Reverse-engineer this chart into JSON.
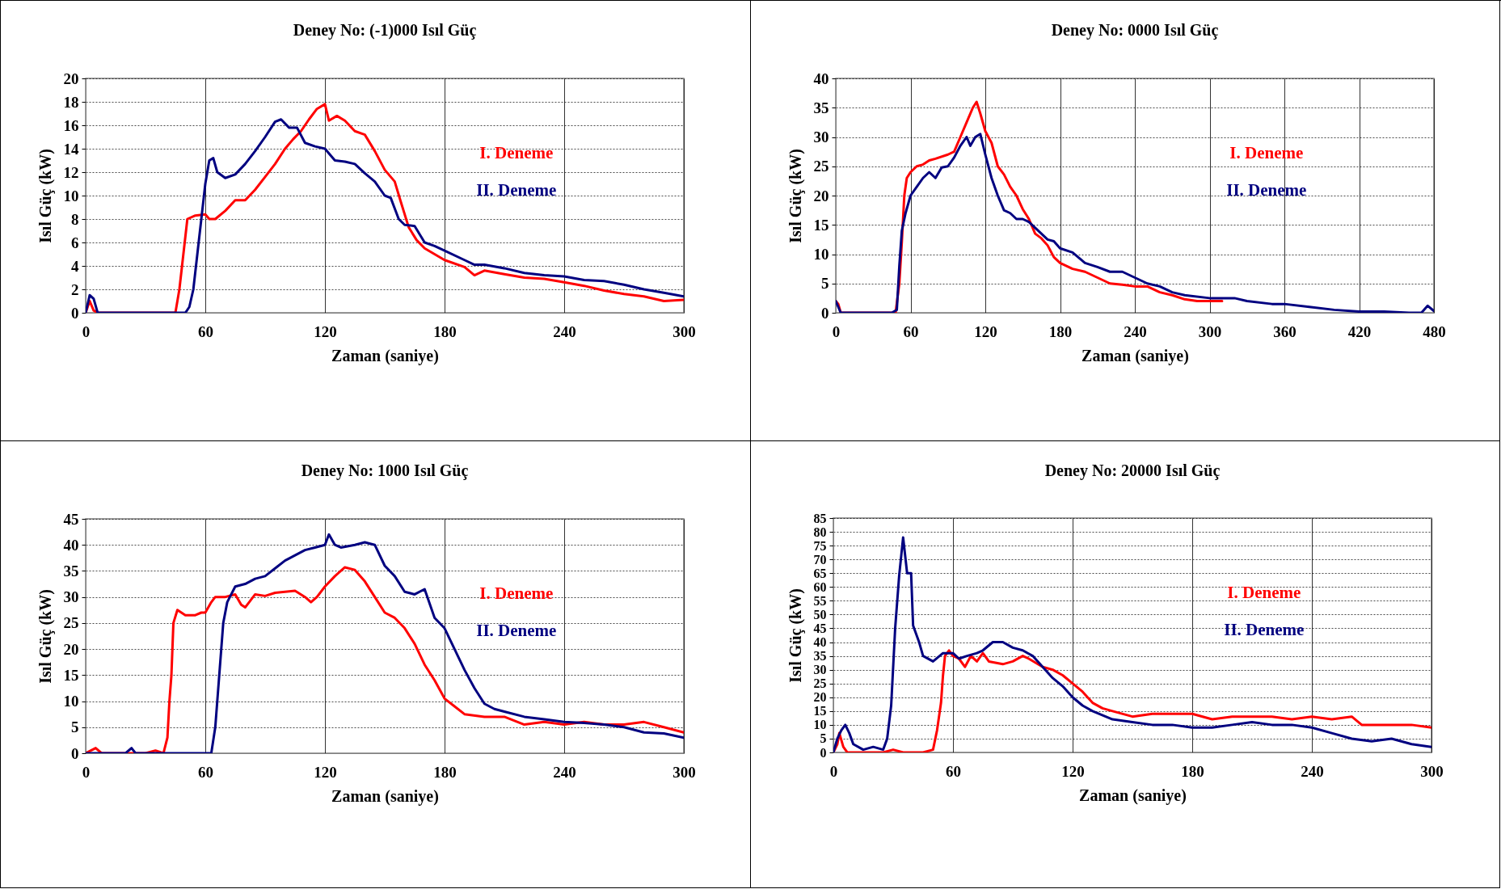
{
  "chart_data": [
    {
      "type": "line",
      "title": "Deney No: (-1)000 Isıl Güç",
      "xlabel": "Zaman (saniye)",
      "ylabel": "Isıl Güç (kW)",
      "xlim": [
        0,
        300
      ],
      "xticks": [
        0,
        60,
        120,
        180,
        240,
        300
      ],
      "ylim": [
        0,
        20
      ],
      "yticks": [
        0,
        2,
        4,
        6,
        8,
        10,
        12,
        14,
        16,
        18,
        20
      ],
      "grid": true,
      "line_style": "solid",
      "series": [
        {
          "name": "I. Deneme",
          "color": "#ff0000",
          "x": [
            0,
            2,
            4,
            6,
            30,
            45,
            47,
            49,
            51,
            55,
            60,
            62,
            65,
            70,
            75,
            80,
            85,
            90,
            95,
            100,
            104,
            108,
            112,
            116,
            120,
            122,
            126,
            130,
            135,
            140,
            145,
            150,
            155,
            158,
            162,
            166,
            170,
            175,
            180,
            190,
            195,
            200,
            210,
            220,
            230,
            240,
            250,
            260,
            270,
            280,
            290,
            300
          ],
          "values": [
            0,
            1,
            0.2,
            0,
            0,
            0,
            2,
            5,
            8,
            8.3,
            8.4,
            8,
            8,
            8.7,
            9.6,
            9.6,
            10.5,
            11.6,
            12.7,
            14,
            14.8,
            15.5,
            16.5,
            17.4,
            17.8,
            16.4,
            16.8,
            16.4,
            15.5,
            15.2,
            13.8,
            12.2,
            11.2,
            9.5,
            7.3,
            6.2,
            5.5,
            5,
            4.5,
            3.9,
            3.2,
            3.6,
            3.3,
            3,
            2.9,
            2.6,
            2.3,
            1.9,
            1.6,
            1.4,
            1,
            1.1
          ]
        },
        {
          "name": "II. Deneme",
          "color": "#000080",
          "x": [
            0,
            2,
            4,
            6,
            50,
            52,
            54,
            56,
            58,
            60,
            62,
            64,
            66,
            70,
            75,
            80,
            85,
            90,
            95,
            98,
            102,
            106,
            110,
            115,
            120,
            125,
            130,
            135,
            140,
            145,
            150,
            153,
            157,
            160,
            165,
            170,
            175,
            180,
            190,
            195,
            200,
            210,
            220,
            230,
            240,
            250,
            260,
            270,
            280,
            290,
            300
          ],
          "values": [
            0,
            1.5,
            1.2,
            0,
            0,
            0.5,
            2,
            5,
            8,
            11,
            13,
            13.2,
            12,
            11.5,
            11.8,
            12.7,
            13.8,
            15,
            16.3,
            16.5,
            15.8,
            15.8,
            14.5,
            14.2,
            14,
            13,
            12.9,
            12.7,
            11.9,
            11.2,
            10,
            9.8,
            8,
            7.5,
            7.4,
            6,
            5.7,
            5.3,
            4.5,
            4.1,
            4.1,
            3.8,
            3.4,
            3.2,
            3.1,
            2.8,
            2.7,
            2.4,
            2,
            1.7,
            1.4
          ]
        }
      ]
    },
    {
      "type": "line",
      "title": "Deney No: 0000 Isıl Güç",
      "xlabel": "Zaman (saniye)",
      "ylabel": "Isıl Güç (kW)",
      "xlim": [
        0,
        480
      ],
      "xticks": [
        0,
        60,
        120,
        180,
        240,
        300,
        360,
        420,
        480
      ],
      "ylim": [
        0,
        40
      ],
      "yticks": [
        0,
        5,
        10,
        15,
        20,
        25,
        30,
        35,
        40
      ],
      "grid": true,
      "line_style": "solid",
      "series": [
        {
          "name": "I. Deneme",
          "color": "#ff0000",
          "x": [
            0,
            2,
            4,
            48,
            51,
            53,
            55,
            57,
            60,
            65,
            70,
            75,
            80,
            90,
            95,
            100,
            105,
            110,
            113,
            116,
            120,
            125,
            130,
            135,
            140,
            145,
            150,
            155,
            160,
            165,
            170,
            175,
            180,
            190,
            200,
            210,
            220,
            230,
            240,
            250,
            260,
            270,
            280,
            290,
            300,
            310
          ],
          "values": [
            2,
            1.5,
            0,
            0,
            5,
            12,
            20,
            23,
            24,
            25,
            25.3,
            26,
            26.3,
            27,
            27.5,
            30,
            32.5,
            35,
            36,
            34,
            31,
            29,
            25,
            23.6,
            21.5,
            20,
            17.7,
            16,
            13.5,
            12.7,
            11.5,
            9.5,
            8.5,
            7.5,
            7,
            6,
            5,
            4.8,
            4.5,
            4.5,
            3.5,
            3,
            2.3,
            2,
            2,
            2
          ]
        },
        {
          "name": "II. Deneme",
          "color": "#000080",
          "x": [
            0,
            4,
            45,
            49,
            51,
            53,
            56,
            60,
            65,
            70,
            75,
            80,
            85,
            90,
            95,
            100,
            105,
            108,
            112,
            116,
            120,
            125,
            130,
            135,
            140,
            145,
            150,
            155,
            160,
            165,
            170,
            175,
            180,
            190,
            200,
            210,
            220,
            230,
            240,
            250,
            260,
            270,
            280,
            300,
            320,
            330,
            350,
            360,
            380,
            400,
            420,
            440,
            460,
            470,
            475,
            480
          ],
          "values": [
            2,
            0,
            0,
            0.5,
            8,
            14,
            17,
            20,
            21.5,
            23,
            24,
            23,
            24.8,
            25,
            26.5,
            28.5,
            30,
            28.5,
            30,
            30.5,
            27,
            23,
            20,
            17.5,
            17,
            16,
            16,
            15.5,
            14.5,
            13.5,
            12.5,
            12.2,
            11,
            10.3,
            8.5,
            7.8,
            7,
            7,
            6,
            5,
            4.5,
            3.5,
            3,
            2.5,
            2.5,
            2,
            1.5,
            1.5,
            1,
            0.5,
            0.2,
            0.2,
            0,
            0,
            1.2,
            0.3
          ]
        }
      ]
    },
    {
      "type": "line",
      "title": "Deney No: 1000 Isıl Güç",
      "xlabel": "Zaman (saniye)",
      "ylabel": "Isıl Güç (kW)",
      "xlim": [
        0,
        300
      ],
      "xticks": [
        0,
        60,
        120,
        180,
        240,
        300
      ],
      "ylim": [
        0,
        45
      ],
      "yticks": [
        0,
        5,
        10,
        15,
        20,
        25,
        30,
        35,
        40,
        45
      ],
      "grid": true,
      "line_style": "solid",
      "series": [
        {
          "name": "I. Deneme",
          "color": "#ff0000",
          "x": [
            0,
            5,
            8,
            30,
            35,
            39,
            41,
            42,
            43,
            44,
            46,
            48,
            50,
            55,
            58,
            60,
            63,
            65,
            70,
            75,
            78,
            80,
            85,
            90,
            95,
            100,
            105,
            110,
            113,
            116,
            120,
            125,
            130,
            135,
            140,
            145,
            150,
            155,
            160,
            165,
            170,
            175,
            180,
            185,
            190,
            200,
            210,
            220,
            230,
            240,
            250,
            260,
            270,
            280,
            290,
            300
          ],
          "values": [
            0,
            1,
            0,
            0,
            0.5,
            0,
            3,
            10,
            15,
            25,
            27.5,
            27,
            26.5,
            26.5,
            27,
            27,
            29,
            30,
            30,
            30.5,
            28.5,
            28,
            30.5,
            30.2,
            30.8,
            31,
            31.2,
            30,
            29,
            30,
            32,
            34,
            35.7,
            35.2,
            33,
            30,
            27,
            26,
            24,
            21,
            17,
            14,
            10.5,
            9,
            7.5,
            7,
            7,
            5.5,
            6,
            5.5,
            6,
            5.5,
            5.5,
            6,
            5,
            4
          ]
        },
        {
          "name": "II. Deneme",
          "color": "#000080",
          "x": [
            0,
            20,
            23,
            25,
            60,
            63,
            65,
            67,
            69,
            71,
            75,
            80,
            85,
            90,
            95,
            100,
            105,
            110,
            115,
            120,
            122,
            125,
            128,
            135,
            140,
            145,
            150,
            155,
            160,
            165,
            170,
            175,
            180,
            185,
            190,
            195,
            200,
            205,
            210,
            220,
            230,
            240,
            250,
            260,
            270,
            280,
            290,
            300
          ],
          "values": [
            0,
            0,
            1,
            0,
            0,
            0,
            5,
            15,
            25,
            29,
            32,
            32.5,
            33.5,
            34,
            35.5,
            37,
            38,
            39,
            39.5,
            40,
            42,
            40,
            39.5,
            40,
            40.5,
            40,
            36,
            34,
            31,
            30.5,
            31.5,
            26,
            24,
            20,
            16,
            12.5,
            9.5,
            8.5,
            8,
            7,
            6.5,
            6,
            5.8,
            5.5,
            5,
            4,
            3.8,
            3
          ]
        }
      ]
    },
    {
      "type": "line",
      "title": "Deney No: 20000 Isıl Güç",
      "xlabel": "Zaman (saniye)",
      "ylabel": "Isıl Güç (kW)",
      "xlim": [
        0,
        300
      ],
      "xticks": [
        0,
        60,
        120,
        180,
        240,
        300
      ],
      "ylim": [
        0,
        85
      ],
      "yticks": [
        0,
        5,
        10,
        15,
        20,
        25,
        30,
        35,
        40,
        45,
        50,
        55,
        60,
        65,
        70,
        75,
        80,
        85
      ],
      "grid": true,
      "line_style": "solid",
      "series": [
        {
          "name": "I. Deneme",
          "color": "#ff0000",
          "x": [
            0,
            2,
            3,
            5,
            7,
            20,
            25,
            30,
            35,
            45,
            50,
            52,
            54,
            55,
            56,
            58,
            60,
            63,
            66,
            69,
            72,
            75,
            78,
            85,
            90,
            95,
            98,
            105,
            110,
            115,
            120,
            125,
            130,
            135,
            140,
            150,
            160,
            170,
            180,
            190,
            200,
            210,
            220,
            230,
            240,
            250,
            260,
            265,
            280,
            290,
            300
          ],
          "values": [
            0,
            3,
            7,
            2,
            0,
            0,
            0,
            1,
            0,
            0,
            1,
            8,
            18,
            28,
            35,
            37,
            35,
            34,
            31,
            35,
            33,
            36,
            33,
            32,
            33,
            35,
            34,
            31,
            30,
            28,
            25,
            22,
            18,
            16,
            15,
            13,
            14,
            14,
            14,
            12,
            13,
            13,
            13,
            12,
            13,
            12,
            13,
            10,
            10,
            10,
            9
          ]
        },
        {
          "name": "II. Deneme",
          "color": "#000080",
          "x": [
            0,
            2,
            4,
            6,
            8,
            10,
            15,
            20,
            25,
            27,
            29,
            31,
            33,
            35,
            37,
            39,
            40,
            43,
            45,
            50,
            55,
            60,
            63,
            67,
            72,
            75,
            80,
            85,
            90,
            95,
            100,
            105,
            110,
            115,
            120,
            125,
            130,
            140,
            150,
            160,
            170,
            180,
            190,
            200,
            210,
            220,
            230,
            240,
            250,
            260,
            270,
            280,
            290,
            300
          ],
          "values": [
            0,
            5,
            8,
            10,
            7,
            3,
            1,
            2,
            1,
            5,
            17,
            45,
            64,
            78,
            65,
            65,
            46,
            40,
            35,
            33,
            36,
            36,
            34,
            35,
            36,
            37,
            40,
            40,
            38,
            37,
            35,
            31,
            27,
            24,
            20,
            17,
            15,
            12,
            11,
            10,
            10,
            9,
            9,
            10,
            11,
            10,
            10,
            9,
            7,
            5,
            4,
            5,
            3,
            2
          ]
        }
      ]
    }
  ]
}
